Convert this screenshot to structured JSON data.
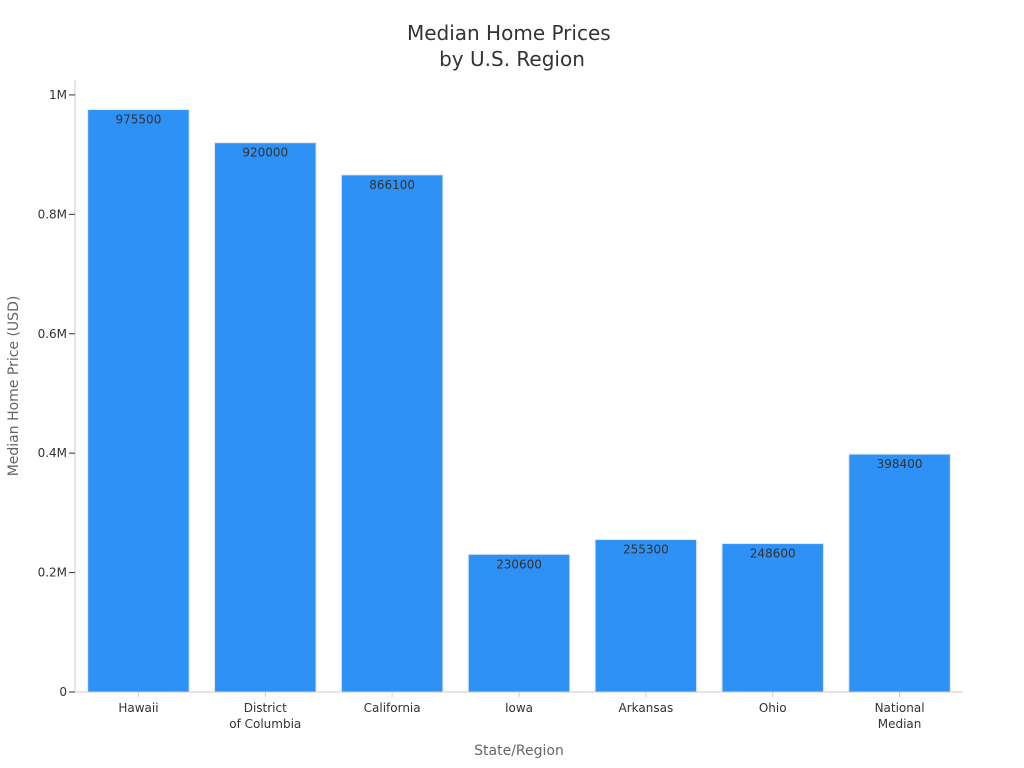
{
  "chart_data": {
    "type": "bar",
    "title": [
      "Median Home Prices",
      "by U.S. Region"
    ],
    "xlabel": "State/Region",
    "ylabel": "Median Home Price (USD)",
    "categories": [
      [
        "Hawaii"
      ],
      [
        "District",
        "of Columbia"
      ],
      [
        "California"
      ],
      [
        "Iowa"
      ],
      [
        "Arkansas"
      ],
      [
        "Ohio"
      ],
      [
        "National",
        "Median"
      ]
    ],
    "values": [
      975500,
      920000,
      866100,
      230600,
      255300,
      248600,
      398400
    ],
    "data_labels": [
      "975500",
      "920000",
      "866100",
      "230600",
      "255300",
      "248600",
      "398400"
    ],
    "ylim": [
      0,
      1025000
    ],
    "yticks": [
      0,
      200000,
      400000,
      600000,
      800000,
      1000000
    ],
    "ytick_labels": [
      "0",
      "0.2M",
      "0.4M",
      "0.6M",
      "0.8M",
      "1M"
    ],
    "bar_color": "#2e91f6",
    "grid": false,
    "legend": "none"
  }
}
